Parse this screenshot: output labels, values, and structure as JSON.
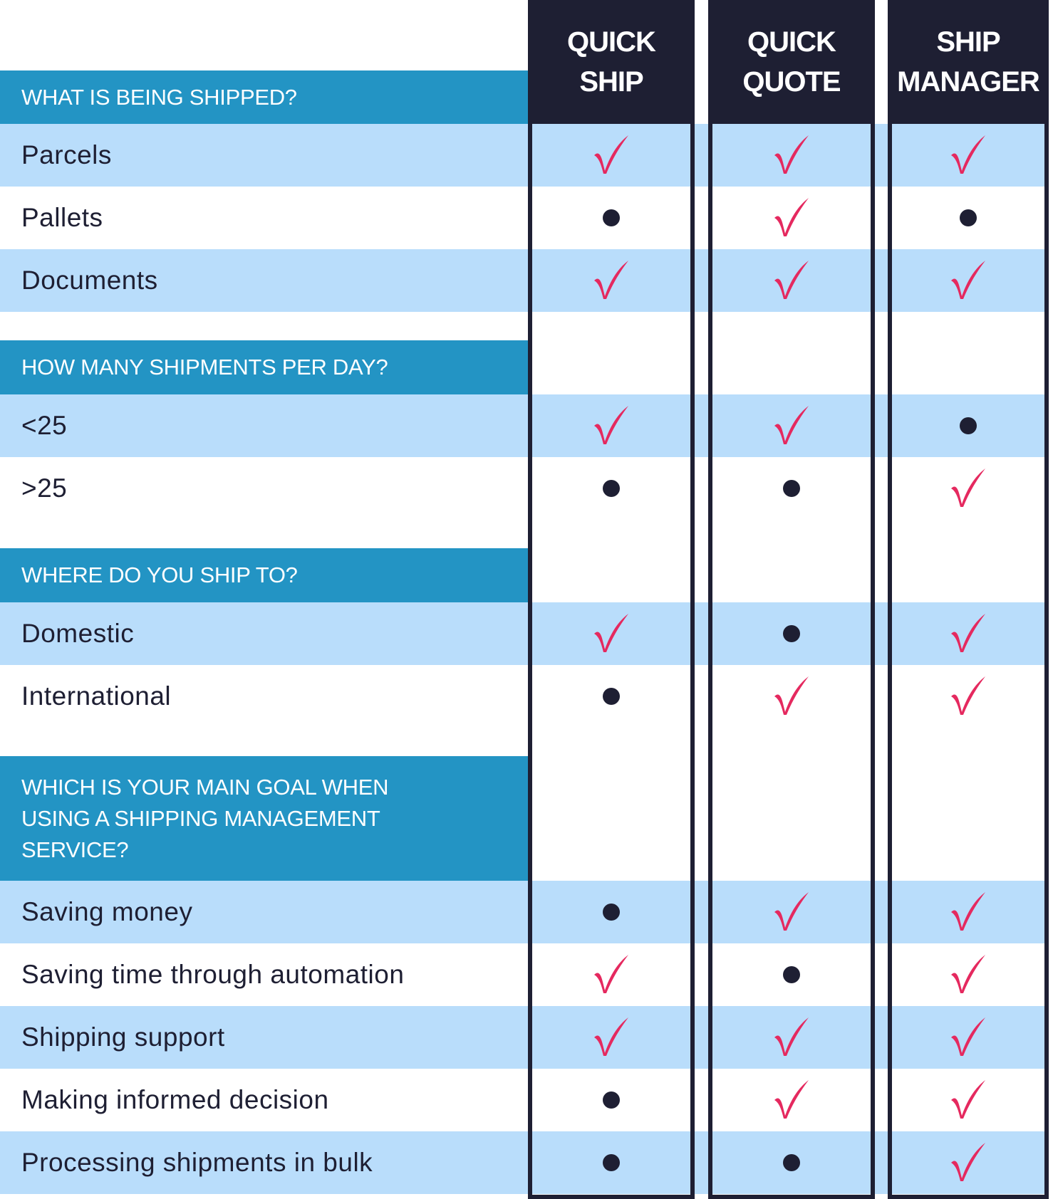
{
  "colors": {
    "header_dark": "#1e1f33",
    "section_blue": "#2394c4",
    "row_light_blue": "#b9ddfb",
    "check_pink": "#e5295f"
  },
  "columns": [
    {
      "line1": "QUICK",
      "line2": "SHIP"
    },
    {
      "line1": "QUICK",
      "line2": "QUOTE"
    },
    {
      "line1": "SHIP",
      "line2": "MANAGER"
    }
  ],
  "sections": [
    {
      "title": "WHAT IS BEING SHIPPED?",
      "rows": [
        {
          "label": "Parcels",
          "values": [
            "check",
            "check",
            "check"
          ]
        },
        {
          "label": "Pallets",
          "values": [
            "dot",
            "check",
            "dot"
          ]
        },
        {
          "label": "Documents",
          "values": [
            "check",
            "check",
            "check"
          ]
        }
      ]
    },
    {
      "title": "HOW MANY SHIPMENTS PER DAY?",
      "rows": [
        {
          "label": "<25",
          "values": [
            "check",
            "check",
            "dot"
          ]
        },
        {
          "label": ">25",
          "values": [
            "dot",
            "dot",
            "check"
          ]
        }
      ]
    },
    {
      "title": "WHERE DO YOU SHIP TO?",
      "rows": [
        {
          "label": "Domestic",
          "values": [
            "check",
            "dot",
            "check"
          ]
        },
        {
          "label": "International",
          "values": [
            "dot",
            "check",
            "check"
          ]
        }
      ]
    },
    {
      "title": "WHICH IS YOUR MAIN GOAL WHEN USING A SHIPPING MANAGEMENT SERVICE?",
      "rows": [
        {
          "label": "Saving money",
          "values": [
            "dot",
            "check",
            "check"
          ]
        },
        {
          "label": "Saving time through automation",
          "values": [
            "check",
            "dot",
            "check"
          ]
        },
        {
          "label": "Shipping support",
          "values": [
            "check",
            "check",
            "check"
          ]
        },
        {
          "label": "Making informed decision",
          "values": [
            "dot",
            "check",
            "check"
          ]
        },
        {
          "label": "Processing shipments in bulk",
          "values": [
            "dot",
            "dot",
            "check"
          ]
        }
      ]
    }
  ]
}
